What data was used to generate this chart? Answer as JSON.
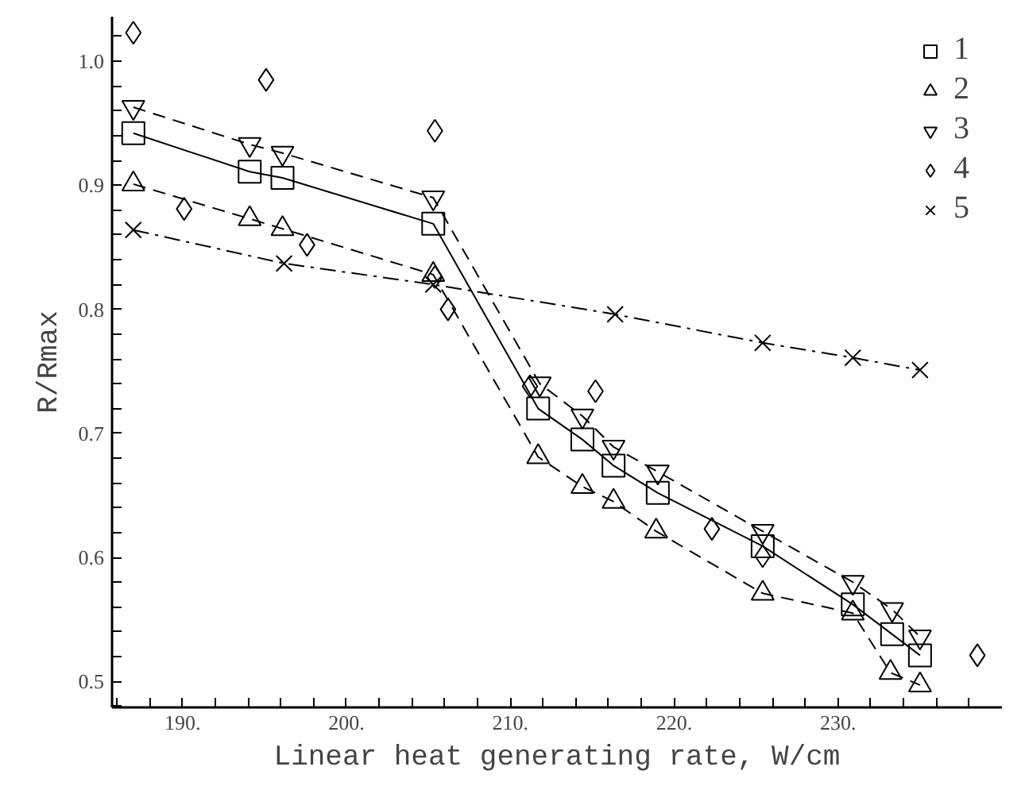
{
  "chart_data": {
    "type": "line",
    "xlabel": "Linear heat generating rate, W/cm",
    "ylabel": "R/Rmax",
    "xlim": [
      185.7,
      240
    ],
    "ylim": [
      0.479,
      1.036
    ],
    "xticks": [
      {
        "value": 186,
        "label": null
      },
      {
        "value": 188,
        "label": null
      },
      {
        "value": 190,
        "label": "190."
      },
      {
        "value": 192,
        "label": null
      },
      {
        "value": 194,
        "label": null
      },
      {
        "value": 196,
        "label": null
      },
      {
        "value": 198,
        "label": null
      },
      {
        "value": 200,
        "label": "200."
      },
      {
        "value": 202,
        "label": null
      },
      {
        "value": 204,
        "label": null
      },
      {
        "value": 206,
        "label": null
      },
      {
        "value": 208,
        "label": null
      },
      {
        "value": 210,
        "label": "210."
      },
      {
        "value": 212,
        "label": null
      },
      {
        "value": 214,
        "label": null
      },
      {
        "value": 216,
        "label": null
      },
      {
        "value": 218,
        "label": null
      },
      {
        "value": 220,
        "label": "220."
      },
      {
        "value": 222,
        "label": null
      },
      {
        "value": 224,
        "label": null
      },
      {
        "value": 226,
        "label": null
      },
      {
        "value": 228,
        "label": null
      },
      {
        "value": 230,
        "label": "230."
      },
      {
        "value": 232,
        "label": null
      },
      {
        "value": 234,
        "label": null
      },
      {
        "value": 236,
        "label": null
      },
      {
        "value": 238,
        "label": null
      }
    ],
    "yticks": [
      {
        "value": 0.48,
        "label": null
      },
      {
        "value": 0.5,
        "label": "0.5"
      },
      {
        "value": 0.52,
        "label": null
      },
      {
        "value": 0.54,
        "label": null
      },
      {
        "value": 0.56,
        "label": null
      },
      {
        "value": 0.58,
        "label": null
      },
      {
        "value": 0.6,
        "label": "0.6"
      },
      {
        "value": 0.62,
        "label": null
      },
      {
        "value": 0.64,
        "label": null
      },
      {
        "value": 0.66,
        "label": null
      },
      {
        "value": 0.68,
        "label": null
      },
      {
        "value": 0.7,
        "label": "0.7"
      },
      {
        "value": 0.72,
        "label": null
      },
      {
        "value": 0.74,
        "label": null
      },
      {
        "value": 0.76,
        "label": null
      },
      {
        "value": 0.78,
        "label": null
      },
      {
        "value": 0.8,
        "label": "0.8"
      },
      {
        "value": 0.82,
        "label": null
      },
      {
        "value": 0.84,
        "label": null
      },
      {
        "value": 0.86,
        "label": null
      },
      {
        "value": 0.88,
        "label": null
      },
      {
        "value": 0.9,
        "label": "0.9"
      },
      {
        "value": 0.92,
        "label": null
      },
      {
        "value": 0.94,
        "label": null
      },
      {
        "value": 0.96,
        "label": null
      },
      {
        "value": 0.98,
        "label": null
      },
      {
        "value": 1.0,
        "label": "1.0"
      },
      {
        "value": 1.02,
        "label": null
      }
    ],
    "grid": false,
    "legend": "top right",
    "series": [
      {
        "name": "1",
        "color": "#000000",
        "marker": "square",
        "line_style": "solid",
        "x": [
          187.0,
          194.1,
          196.1,
          205.3,
          211.7,
          214.4,
          216.3,
          219.0,
          225.4,
          230.9,
          233.3,
          235.0
        ],
        "values": [
          0.942,
          0.911,
          0.906,
          0.869,
          0.72,
          0.695,
          0.674,
          0.652,
          0.609,
          0.562,
          0.538,
          0.521
        ]
      },
      {
        "name": "2",
        "color": "#000000",
        "marker": "triangle",
        "line_style": "dashed",
        "x": [
          187.0,
          194.1,
          196.1,
          205.3,
          211.7,
          214.4,
          216.3,
          218.9,
          225.4,
          230.9,
          233.2,
          235.0
        ],
        "values": [
          0.901,
          0.873,
          0.865,
          0.828,
          0.681,
          0.657,
          0.645,
          0.621,
          0.571,
          0.555,
          0.507,
          0.497
        ]
      },
      {
        "name": "3",
        "color": "#000000",
        "marker": "triangle_down",
        "line_style": "dashed",
        "x": [
          187.0,
          194.1,
          196.1,
          205.3,
          211.8,
          214.4,
          216.3,
          219.0,
          225.4,
          230.9,
          233.3,
          235.0
        ],
        "values": [
          0.963,
          0.933,
          0.926,
          0.89,
          0.74,
          0.714,
          0.689,
          0.669,
          0.621,
          0.58,
          0.558,
          0.536
        ]
      },
      {
        "name": "4",
        "color": "#000000",
        "type": "scatter",
        "marker": "diamond",
        "x": [
          187.0,
          190.1,
          195.1,
          197.6,
          205.4,
          205.4,
          206.2,
          211.2,
          215.2,
          222.3,
          225.4,
          238.5
        ],
        "values": [
          1.023,
          0.881,
          0.985,
          0.852,
          0.944,
          0.826,
          0.8,
          0.738,
          0.734,
          0.623,
          0.601,
          0.521
        ]
      },
      {
        "name": "5",
        "color": "#000000",
        "marker": "cross",
        "line_style": "dashdot",
        "x": [
          187.0,
          196.2,
          205.3,
          216.4,
          225.4,
          230.9,
          235.0
        ],
        "values": [
          0.864,
          0.837,
          0.82,
          0.796,
          0.773,
          0.761,
          0.751
        ]
      }
    ]
  }
}
